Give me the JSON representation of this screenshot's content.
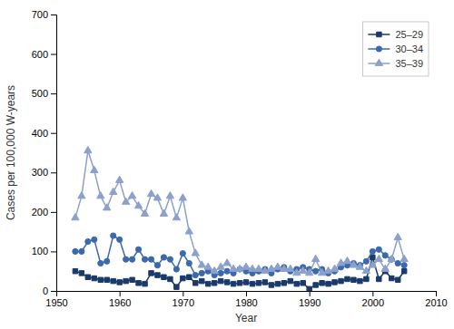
{
  "chart_data": {
    "type": "line",
    "x": [
      1953,
      1954,
      1955,
      1956,
      1957,
      1958,
      1959,
      1960,
      1961,
      1962,
      1963,
      1964,
      1965,
      1966,
      1967,
      1968,
      1969,
      1970,
      1971,
      1972,
      1973,
      1974,
      1975,
      1976,
      1977,
      1978,
      1979,
      1980,
      1981,
      1982,
      1983,
      1984,
      1985,
      1986,
      1987,
      1988,
      1989,
      1990,
      1991,
      1992,
      1993,
      1994,
      1995,
      1996,
      1997,
      1998,
      1999,
      2000,
      2001,
      2002,
      2003,
      2004,
      2005
    ],
    "series": [
      {
        "name": "25–29",
        "color": "#1a3a6b",
        "marker": "square",
        "values": [
          50,
          45,
          35,
          32,
          28,
          28,
          25,
          22,
          25,
          28,
          20,
          18,
          45,
          40,
          35,
          30,
          10,
          32,
          35,
          20,
          25,
          18,
          20,
          25,
          22,
          18,
          20,
          22,
          18,
          20,
          22,
          15,
          18,
          20,
          25,
          18,
          20,
          5,
          15,
          20,
          18,
          22,
          25,
          30,
          28,
          25,
          30,
          85,
          30,
          50,
          32,
          28,
          50
        ]
      },
      {
        "name": "30–34",
        "color": "#3a6aad",
        "marker": "circle",
        "values": [
          100,
          100,
          125,
          130,
          70,
          75,
          140,
          130,
          80,
          80,
          105,
          80,
          80,
          65,
          85,
          80,
          55,
          95,
          70,
          40,
          45,
          50,
          40,
          45,
          50,
          45,
          55,
          50,
          45,
          50,
          55,
          45,
          55,
          60,
          50,
          55,
          60,
          55,
          50,
          55,
          45,
          50,
          60,
          65,
          70,
          65,
          75,
          100,
          105,
          90,
          80,
          70,
          65
        ]
      },
      {
        "name": "35–39",
        "color": "#8ca0cc",
        "marker": "triangle",
        "values": [
          185,
          240,
          355,
          305,
          240,
          210,
          250,
          280,
          225,
          240,
          215,
          195,
          245,
          235,
          195,
          240,
          185,
          235,
          150,
          95,
          65,
          60,
          50,
          60,
          70,
          55,
          55,
          60,
          55,
          55,
          50,
          55,
          60,
          55,
          55,
          45,
          50,
          45,
          80,
          45,
          50,
          55,
          70,
          75,
          65,
          60,
          50,
          65,
          80,
          55,
          80,
          135,
          80
        ]
      }
    ],
    "xlabel": "Year",
    "ylabel": "Cases per 100,000 W-years",
    "xlim": [
      1950,
      2010
    ],
    "ylim": [
      0,
      700
    ],
    "xticks": [
      1950,
      1960,
      1970,
      1980,
      1990,
      2000,
      2010
    ],
    "yticks": [
      0,
      100,
      200,
      300,
      400,
      500,
      600,
      700
    ],
    "grid": false,
    "legend": "upper right"
  }
}
